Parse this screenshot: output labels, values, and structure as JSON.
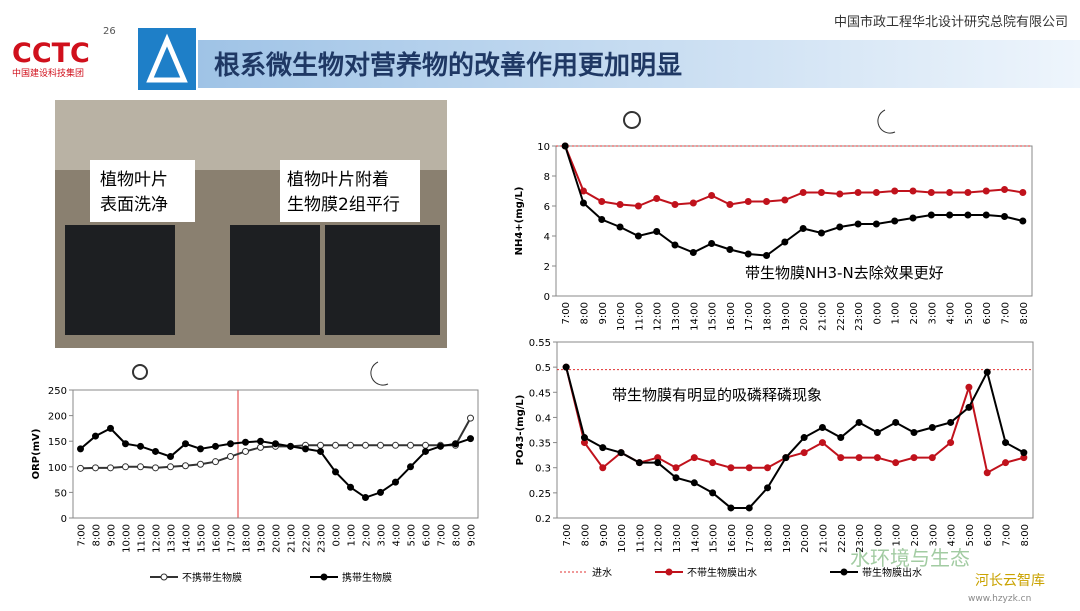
{
  "header": {
    "company": "中国市政工程华北设计研究总院有限公司",
    "title": "根系微生物对营养物的改善作用更加明显",
    "logo_text": "CCTC",
    "logo_sub": "中国建设科技集团",
    "logo_num": "26"
  },
  "photo": {
    "label_left": [
      "植物叶片",
      "表面洗净"
    ],
    "label_right": [
      "植物叶片附着",
      "生物膜2组平行"
    ]
  },
  "watermark": [
    "水环境与生态",
    "河长云智库",
    "www.hzyzk.cn"
  ],
  "chart_data": [
    {
      "type": "line",
      "y_label": "NH4+(mg/L)",
      "annotation": "带生物膜NH3-N去除效果更好",
      "categories": [
        "7:00",
        "8:00",
        "9:00",
        "10:00",
        "11:00",
        "12:00",
        "13:00",
        "14:00",
        "15:00",
        "16:00",
        "17:00",
        "18:00",
        "19:00",
        "20:00",
        "21:00",
        "22:00",
        "23:00",
        "0:00",
        "1:00",
        "2:00",
        "3:00",
        "4:00",
        "5:00",
        "6:00",
        "7:00",
        "8:00"
      ],
      "ylim": [
        0,
        10
      ],
      "yticks": [
        0,
        2,
        4,
        6,
        8,
        10
      ],
      "reference": {
        "value": 10,
        "color": "#e03030"
      },
      "series": [
        {
          "name": "不带生物膜出水",
          "color": "#c0121c",
          "marker": "filled",
          "values": [
            10,
            7.0,
            6.3,
            6.1,
            6.0,
            6.5,
            6.1,
            6.2,
            6.7,
            6.1,
            6.3,
            6.3,
            6.4,
            6.9,
            6.9,
            6.8,
            6.9,
            6.9,
            7.0,
            7.0,
            6.9,
            6.9,
            6.9,
            7.0,
            7.1,
            6.9
          ]
        },
        {
          "name": "带生物膜出水",
          "color": "#000000",
          "marker": "filled",
          "values": [
            10,
            6.2,
            5.1,
            4.6,
            4.0,
            4.3,
            3.4,
            2.9,
            3.5,
            3.1,
            2.8,
            2.7,
            3.6,
            4.5,
            4.2,
            4.6,
            4.8,
            4.8,
            5.0,
            5.2,
            5.4,
            5.4,
            5.4,
            5.4,
            5.3,
            5.0
          ]
        }
      ]
    },
    {
      "type": "line",
      "y_label": "PO43-(mg/L)",
      "annotation": "带生物膜有明显的吸磷释磷现象",
      "categories": [
        "7:00",
        "8:00",
        "9:00",
        "10:00",
        "11:00",
        "12:00",
        "13:00",
        "14:00",
        "15:00",
        "16:00",
        "17:00",
        "18:00",
        "19:00",
        "20:00",
        "21:00",
        "22:00",
        "23:00",
        "0:00",
        "1:00",
        "2:00",
        "3:00",
        "4:00",
        "5:00",
        "6:00",
        "7:00",
        "8:00"
      ],
      "ylim": [
        0.2,
        0.55
      ],
      "yticks": [
        0.2,
        0.25,
        0.3,
        0.35,
        0.4,
        0.45,
        0.5,
        0.55
      ],
      "reference": {
        "name": "进水",
        "value": 0.495,
        "color": "#e03030"
      },
      "series": [
        {
          "name": "不带生物膜出水",
          "color": "#c0121c",
          "marker": "filled",
          "values": [
            0.5,
            0.35,
            0.3,
            0.33,
            0.31,
            0.32,
            0.3,
            0.32,
            0.31,
            0.3,
            0.3,
            0.3,
            0.32,
            0.33,
            0.35,
            0.32,
            0.32,
            0.32,
            0.31,
            0.32,
            0.32,
            0.35,
            0.46,
            0.29,
            0.31,
            0.32
          ]
        },
        {
          "name": "带生物膜出水",
          "color": "#000000",
          "marker": "filled",
          "values": [
            0.5,
            0.36,
            0.34,
            0.33,
            0.31,
            0.31,
            0.28,
            0.27,
            0.25,
            0.22,
            0.22,
            0.26,
            0.32,
            0.36,
            0.38,
            0.36,
            0.39,
            0.37,
            0.39,
            0.37,
            0.38,
            0.39,
            0.42,
            0.49,
            0.35,
            0.33
          ]
        }
      ]
    },
    {
      "type": "line",
      "y_label": "ORP(mV)",
      "categories": [
        "7:00",
        "8:00",
        "9:00",
        "10:00",
        "11:00",
        "12:00",
        "13:00",
        "14:00",
        "15:00",
        "16:00",
        "17:00",
        "18:00",
        "19:00",
        "20:00",
        "21:00",
        "22:00",
        "23:00",
        "0:00",
        "1:00",
        "2:00",
        "3:00",
        "4:00",
        "5:00",
        "6:00",
        "7:00",
        "8:00",
        "9:00"
      ],
      "ylim": [
        0,
        250
      ],
      "yticks": [
        0,
        50,
        100,
        150,
        200,
        250
      ],
      "series": [
        {
          "name": "不携带生物膜",
          "color": "#333333",
          "marker": "open",
          "values": [
            97,
            98,
            98,
            100,
            100,
            98,
            100,
            102,
            105,
            110,
            120,
            130,
            138,
            140,
            140,
            142,
            142,
            142,
            142,
            142,
            142,
            142,
            142,
            142,
            142,
            142,
            195
          ]
        },
        {
          "name": "携带生物膜",
          "color": "#000000",
          "marker": "filled",
          "values": [
            135,
            160,
            175,
            145,
            140,
            130,
            120,
            145,
            135,
            140,
            145,
            148,
            150,
            145,
            140,
            135,
            130,
            90,
            60,
            40,
            50,
            70,
            100,
            130,
            140,
            145,
            155
          ]
        }
      ]
    }
  ]
}
